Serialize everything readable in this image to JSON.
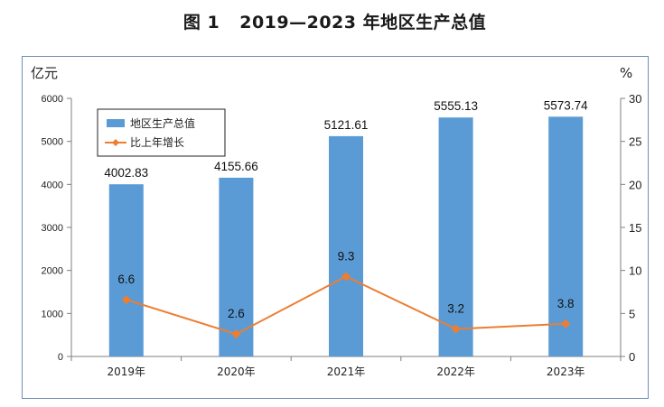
{
  "figure": {
    "label": "图 1",
    "title": "2019—2023 年地区生产总值"
  },
  "chart_data": {
    "type": "bar",
    "categories": [
      "2019年",
      "2020年",
      "2021年",
      "2022年",
      "2023年"
    ],
    "series": [
      {
        "name": "地区生产总值",
        "type": "bar",
        "axis": "left",
        "values": [
          4002.83,
          4155.66,
          5121.61,
          5555.13,
          5573.74
        ],
        "labels": [
          "4002.83",
          "4155.66",
          "5121.61",
          "5555.13",
          "5573.74"
        ],
        "color": "#5b9bd5"
      },
      {
        "name": "比上年增长",
        "type": "line",
        "axis": "right",
        "values": [
          6.6,
          2.6,
          9.3,
          3.2,
          3.8
        ],
        "labels": [
          "6.6",
          "2.6",
          "9.3",
          "3.2",
          "3.8"
        ],
        "color": "#ed7d31"
      }
    ],
    "ylabel": "亿元",
    "y2label": "%",
    "ylim": [
      0,
      6000
    ],
    "y2lim": [
      0,
      30
    ],
    "yticks": [
      "0",
      "1000",
      "2000",
      "3000",
      "4000",
      "5000",
      "6000"
    ],
    "y2ticks": [
      "0",
      "5",
      "10",
      "15",
      "20",
      "25",
      "30"
    ],
    "grid": false,
    "legend": "top-left"
  }
}
